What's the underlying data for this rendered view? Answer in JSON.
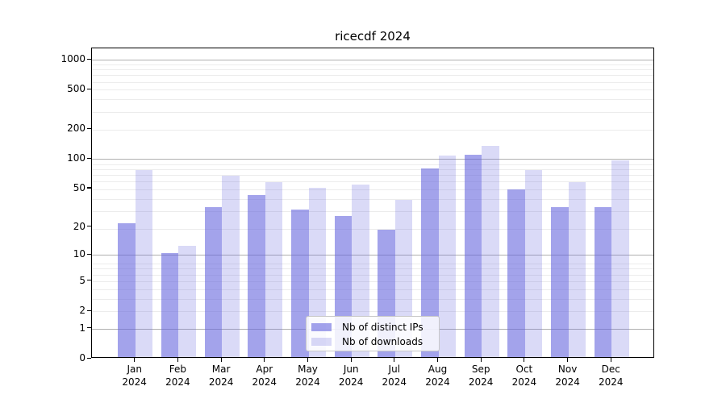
{
  "chart_data": {
    "type": "bar",
    "title": "ricecdf 2024",
    "categories": [
      "Jan",
      "Feb",
      "Mar",
      "Apr",
      "May",
      "Jun",
      "Jul",
      "Aug",
      "Sep",
      "Oct",
      "Nov",
      "Dec"
    ],
    "year_label": "2024",
    "series": [
      {
        "name": "Nb of distinct IPs",
        "values": [
          21,
          10,
          31,
          41,
          29,
          25,
          18,
          77,
          107,
          47,
          31,
          31
        ],
        "color": "rgba(102,102,222,0.6)"
      },
      {
        "name": "Nb of downloads",
        "values": [
          75,
          12,
          65,
          56,
          49,
          53,
          37,
          105,
          132,
          75,
          56,
          93
        ],
        "color": "rgba(102,102,222,0.24)"
      }
    ],
    "xlabel": "",
    "ylabel": "",
    "yscale": "log10(1+v)",
    "y_ticks": [
      1000,
      500,
      200,
      100,
      50,
      20,
      10,
      5,
      2,
      1,
      0
    ],
    "ylim": [
      0,
      1200
    ],
    "grid": {
      "major_values": [
        1,
        10,
        100,
        1000
      ],
      "major_color": "#b0b0b0",
      "minor_color": "#ececec"
    },
    "legend_position": "inside-lower-center"
  },
  "colors": {
    "background": "#ffffff",
    "axis": "#000000",
    "bar_base": "#6666de"
  }
}
